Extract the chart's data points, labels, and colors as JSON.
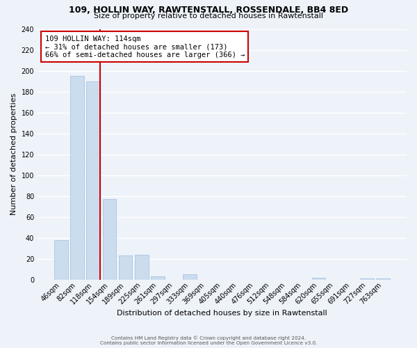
{
  "title1": "109, HOLLIN WAY, RAWTENSTALL, ROSSENDALE, BB4 8ED",
  "title2": "Size of property relative to detached houses in Rawtenstall",
  "xlabel": "Distribution of detached houses by size in Rawtenstall",
  "ylabel": "Number of detached properties",
  "bar_labels": [
    "46sqm",
    "82sqm",
    "118sqm",
    "154sqm",
    "189sqm",
    "225sqm",
    "261sqm",
    "297sqm",
    "333sqm",
    "369sqm",
    "405sqm",
    "440sqm",
    "476sqm",
    "512sqm",
    "548sqm",
    "584sqm",
    "620sqm",
    "655sqm",
    "691sqm",
    "727sqm",
    "763sqm"
  ],
  "bar_values": [
    38,
    195,
    190,
    77,
    23,
    24,
    3,
    0,
    5,
    0,
    0,
    0,
    0,
    0,
    0,
    0,
    2,
    0,
    0,
    1,
    1
  ],
  "bar_color": "#ccdcef",
  "bar_edge_color": "#a8c4e0",
  "vline_index": 2,
  "vline_color": "#cc0000",
  "annotation_title": "109 HOLLIN WAY: 114sqm",
  "annotation_line1": "← 31% of detached houses are smaller (173)",
  "annotation_line2": "66% of semi-detached houses are larger (366) →",
  "annotation_box_color": "#ffffff",
  "annotation_box_edge": "#cc0000",
  "ylim": [
    0,
    240
  ],
  "yticks": [
    0,
    20,
    40,
    60,
    80,
    100,
    120,
    140,
    160,
    180,
    200,
    220,
    240
  ],
  "footer1": "Contains HM Land Registry data © Crown copyright and database right 2024.",
  "footer2": "Contains public sector information licensed under the Open Government Licence v3.0.",
  "bg_color": "#eef3fa",
  "grid_color": "#ffffff"
}
